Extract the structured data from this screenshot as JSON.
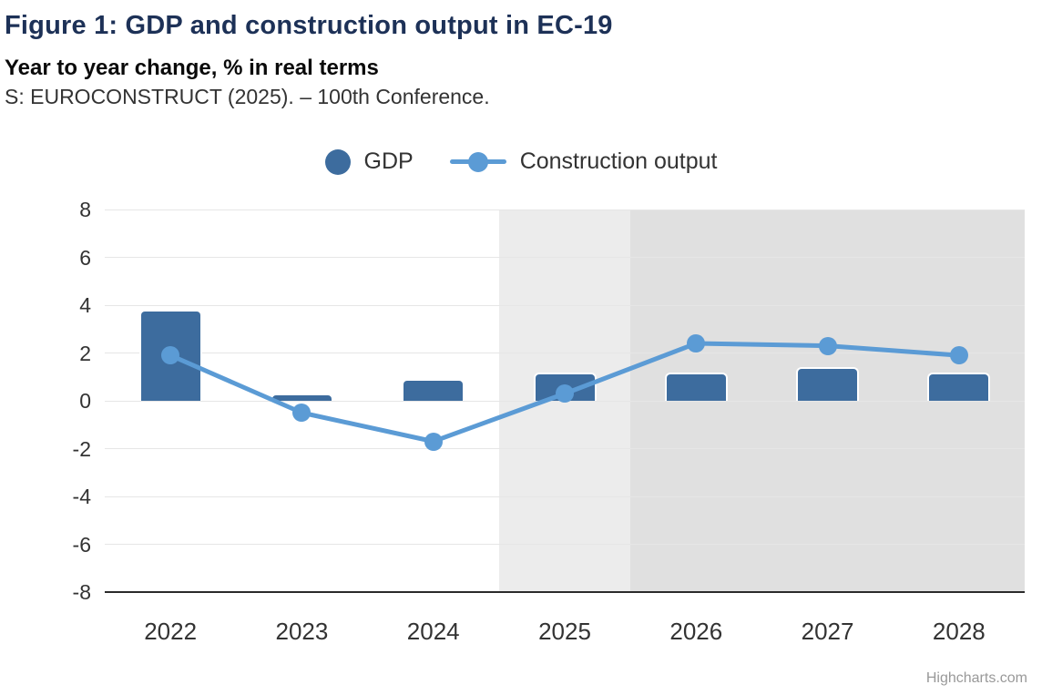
{
  "header": {
    "title": "Figure 1: GDP and construction output in EC-19",
    "subtitle": "Year to year change, % in real terms",
    "source": "S: EUROCONSTRUCT (2025). – 100th Conference."
  },
  "legend": {
    "items": [
      {
        "label": "GDP",
        "marker": "circle",
        "color": "#3d6c9e"
      },
      {
        "label": "Construction output",
        "marker": "line-dot",
        "color": "#5b9bd5"
      }
    ]
  },
  "credit": "Highcharts.com",
  "colors": {
    "title": "#1d3157",
    "bar": "#3d6c9e",
    "line": "#5b9bd5",
    "grid": "#e6e6e6",
    "axis": "#2b2b2b",
    "band_light": "#ececec",
    "band_dark": "#e0e0e0",
    "labels": "#333333"
  },
  "chart_data": {
    "type": "bar",
    "subtype": "column+line combo",
    "title": "Figure 1: GDP and construction output in EC-19",
    "subtitle": "Year to year change, % in real terms",
    "xlabel": "",
    "ylabel": "",
    "categories": [
      "2022",
      "2023",
      "2024",
      "2025",
      "2026",
      "2027",
      "2028"
    ],
    "series": [
      {
        "name": "GDP",
        "type": "bar",
        "color": "#3d6c9e",
        "values": [
          3.8,
          0.3,
          0.9,
          1.2,
          1.2,
          1.4,
          1.2
        ]
      },
      {
        "name": "Construction output",
        "type": "line",
        "color": "#5b9bd5",
        "values": [
          1.9,
          -0.5,
          -1.7,
          0.3,
          2.4,
          2.3,
          1.9
        ]
      }
    ],
    "ylim": [
      -8,
      8
    ],
    "ytick_step": 2,
    "grid": true,
    "legend_position": "top-center",
    "plot_bands": [
      {
        "from_index": 3,
        "to_index": 4,
        "color": "#ececec"
      },
      {
        "from_index": 4,
        "to_index": 7,
        "color": "#e0e0e0"
      }
    ]
  }
}
